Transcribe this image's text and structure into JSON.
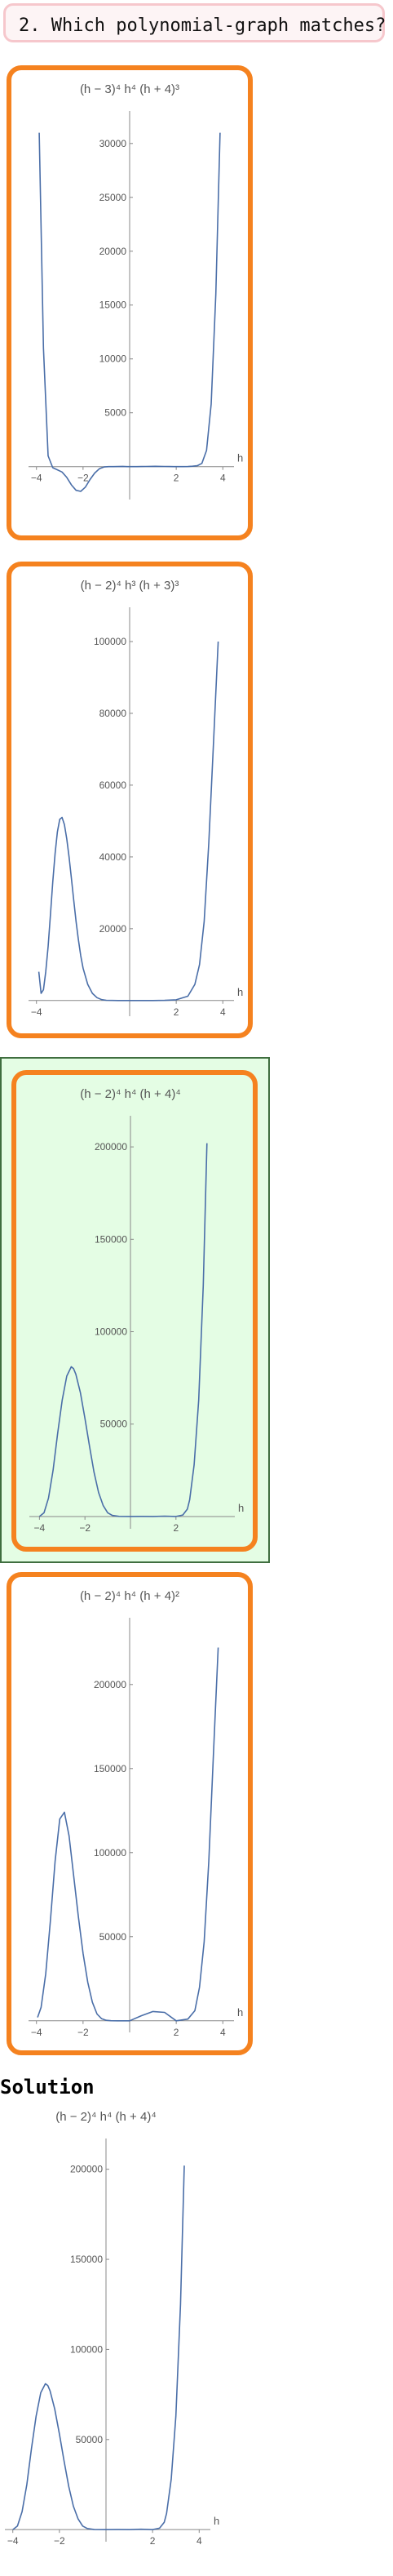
{
  "question": {
    "number": "2.",
    "text": "Which polynomial‐graph matches?"
  },
  "solution_heading": "Solution",
  "colors": {
    "option_border": "#f5821f",
    "highlight_bg": "#e4fde4",
    "curve": "#4a6ea8"
  },
  "chart_data": [
    {
      "type": "line",
      "title": "(h − 3)⁴ h⁴ (h + 4)³",
      "xlabel": "h",
      "x_ticks": [
        "−4",
        "−2",
        "2",
        "4"
      ],
      "y_ticks": [
        "5000",
        "10000",
        "15000",
        "20000",
        "25000",
        "30000"
      ],
      "xlim": [
        -4.2,
        4.2
      ],
      "ylim": [
        -2600,
        31500
      ],
      "x": [
        -3.88,
        -3.7,
        -3.5,
        -3.3,
        -3.1,
        -2.9,
        -2.7,
        -2.5,
        -2.3,
        -2.1,
        -1.9,
        -1.7,
        -1.5,
        -1.3,
        -1.1,
        -0.9,
        -0.7,
        -0.5,
        -0.3,
        -0.1,
        0.1,
        0.3,
        0.5,
        0.7,
        0.9,
        1.1,
        1.3,
        1.5,
        1.7,
        1.9,
        2.1,
        2.3,
        2.5,
        2.7,
        2.9,
        3.1,
        3.3,
        3.5,
        3.7,
        3.88
      ],
      "y": [
        31000,
        11000,
        1000,
        -100,
        -300,
        -500,
        -1000,
        -1700,
        -2200,
        -2300,
        -1900,
        -1200,
        -600,
        -200,
        -30,
        -2,
        0,
        5,
        20,
        2,
        0,
        2,
        5,
        15,
        25,
        30,
        25,
        15,
        5,
        0,
        0,
        2,
        10,
        40,
        80,
        300,
        1500,
        5800,
        16000,
        31000
      ]
    },
    {
      "type": "line",
      "title": "(h − 2)⁴ h³ (h + 3)³",
      "xlabel": "h",
      "x_ticks": [
        "−4",
        "2",
        "4"
      ],
      "y_ticks": [
        "20000",
        "40000",
        "60000",
        "80000",
        "100000"
      ],
      "xlim": [
        -4.2,
        4.2
      ],
      "ylim": [
        -3000,
        105000
      ],
      "x": [
        -3.9,
        -3.8,
        -3.7,
        -3.6,
        -3.5,
        -3.4,
        -3.3,
        -3.2,
        -3.1,
        -3.0,
        -2.9,
        -2.8,
        -2.7,
        -2.6,
        -2.5,
        -2.4,
        -2.3,
        -2.2,
        -2.1,
        -2.0,
        -1.8,
        -1.6,
        -1.4,
        -1.2,
        -1.0,
        -0.5,
        0.0,
        0.5,
        1.0,
        1.5,
        2.0,
        2.5,
        2.8,
        3.0,
        3.2,
        3.4,
        3.6,
        3.8
      ],
      "y": [
        8000,
        2000,
        3000,
        8000,
        15000,
        24000,
        33000,
        41000,
        47000,
        50500,
        51000,
        49000,
        45000,
        40000,
        34000,
        28000,
        22000,
        17000,
        12500,
        9000,
        4500,
        2000,
        800,
        250,
        60,
        0,
        0,
        0,
        0,
        50,
        200,
        1200,
        4500,
        10000,
        22000,
        44000,
        72000,
        100000
      ]
    },
    {
      "type": "line",
      "title": "(h − 2)⁴ h⁴ (h + 4)⁴",
      "xlabel": "h",
      "x_ticks": [
        "−4",
        "−2",
        "2"
      ],
      "y_ticks": [
        "50000",
        "100000",
        "150000",
        "200000"
      ],
      "xlim": [
        -4.3,
        4.3
      ],
      "ylim": [
        -4000,
        208000
      ],
      "x": [
        -4.0,
        -3.8,
        -3.6,
        -3.4,
        -3.2,
        -3.0,
        -2.8,
        -2.6,
        -2.5,
        -2.4,
        -2.2,
        -2.0,
        -1.8,
        -1.6,
        -1.4,
        -1.2,
        -1.0,
        -0.8,
        -0.5,
        0.0,
        0.5,
        1.0,
        1.5,
        2.0,
        2.3,
        2.5,
        2.6,
        2.8,
        3.0,
        3.2,
        3.36
      ],
      "y": [
        0,
        2000,
        10000,
        25000,
        45000,
        63000,
        76000,
        81000,
        80000,
        77000,
        67000,
        53000,
        38000,
        24000,
        13000,
        6000,
        2000,
        600,
        50,
        0,
        50,
        0,
        200,
        0,
        800,
        4000,
        9000,
        28000,
        63000,
        125000,
        202000
      ]
    },
    {
      "type": "line",
      "title": "(h − 2)⁴ h⁴ (h + 4)²",
      "xlabel": "h",
      "x_ticks": [
        "−4",
        "−2",
        "2",
        "4"
      ],
      "y_ticks": [
        "50000",
        "100000",
        "150000",
        "200000"
      ],
      "xlim": [
        -4.2,
        4.2
      ],
      "ylim": [
        -4000,
        230000
      ],
      "x": [
        -3.95,
        -3.8,
        -3.6,
        -3.4,
        -3.2,
        -3.0,
        -2.8,
        -2.6,
        -2.4,
        -2.2,
        -2.0,
        -1.8,
        -1.6,
        -1.4,
        -1.2,
        -1.0,
        -0.8,
        -0.5,
        0.0,
        0.5,
        1.0,
        1.5,
        2.0,
        2.5,
        2.8,
        3.0,
        3.2,
        3.4,
        3.6,
        3.8
      ],
      "y": [
        2000,
        8000,
        28000,
        60000,
        95000,
        120000,
        124000,
        110000,
        86000,
        62000,
        40000,
        23000,
        11000,
        4000,
        1200,
        250,
        30,
        0,
        0,
        3000,
        5500,
        5000,
        0,
        1000,
        6000,
        20000,
        47000,
        95000,
        160000,
        222000
      ]
    },
    {
      "type": "line",
      "title": "(h − 2)⁴ h⁴ (h + 4)⁴",
      "xlabel": "h",
      "x_ticks": [
        "−4",
        "−2",
        "2",
        "4"
      ],
      "y_ticks": [
        "50000",
        "100000",
        "150000",
        "200000"
      ],
      "xlim": [
        -4.2,
        4.2
      ],
      "ylim": [
        -4000,
        208000
      ],
      "x": [
        -4.0,
        -3.8,
        -3.6,
        -3.4,
        -3.2,
        -3.0,
        -2.8,
        -2.6,
        -2.5,
        -2.4,
        -2.2,
        -2.0,
        -1.8,
        -1.6,
        -1.4,
        -1.2,
        -1.0,
        -0.8,
        -0.5,
        0.0,
        0.5,
        1.0,
        1.5,
        2.0,
        2.3,
        2.5,
        2.6,
        2.8,
        3.0,
        3.2,
        3.36
      ],
      "y": [
        0,
        2000,
        10000,
        25000,
        45000,
        63000,
        76000,
        81000,
        80000,
        77000,
        67000,
        53000,
        38000,
        24000,
        13000,
        6000,
        2000,
        600,
        50,
        0,
        50,
        0,
        200,
        0,
        800,
        4000,
        9000,
        28000,
        63000,
        125000,
        202000
      ]
    }
  ]
}
